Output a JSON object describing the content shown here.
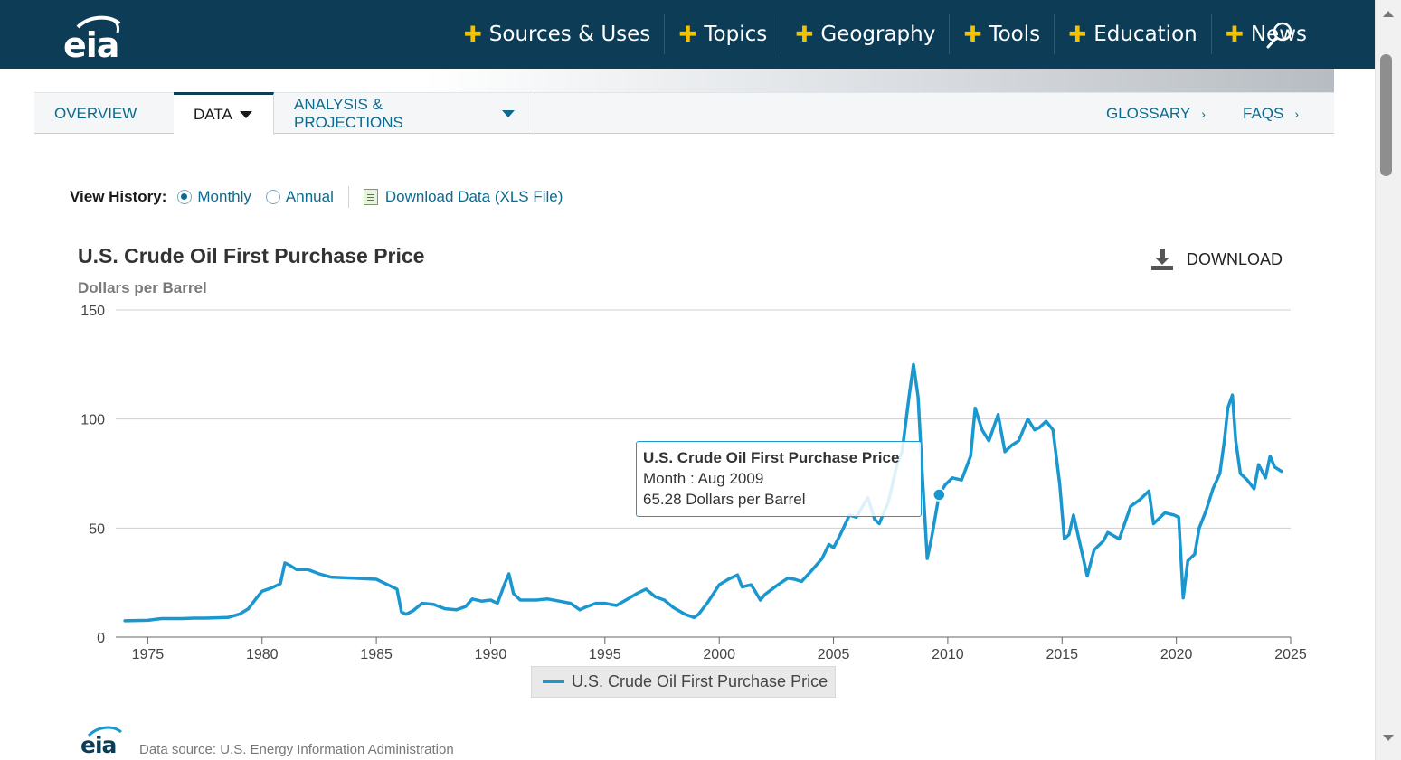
{
  "header": {
    "logo_text": "eia",
    "nav_items": [
      {
        "label": "Sources & Uses"
      },
      {
        "label": "Topics"
      },
      {
        "label": "Geography"
      },
      {
        "label": "Tools"
      },
      {
        "label": "Education"
      },
      {
        "label": "News"
      }
    ],
    "search_icon": "search-icon",
    "brand_color": "#0c3c56",
    "accent_color": "#f2c200"
  },
  "subnav": {
    "tabs": [
      {
        "label": "OVERVIEW",
        "active": false
      },
      {
        "label": "DATA",
        "active": true
      },
      {
        "label": "ANALYSIS & PROJECTIONS",
        "active": false
      }
    ],
    "right_links": [
      {
        "label": "GLOSSARY"
      },
      {
        "label": "FAQS"
      }
    ]
  },
  "view_history": {
    "label": "View History:",
    "options": [
      {
        "label": "Monthly",
        "selected": true
      },
      {
        "label": "Annual",
        "selected": false
      }
    ],
    "download_xls": "Download Data (XLS File)"
  },
  "chart_header": {
    "title": "U.S. Crude Oil First Purchase Price",
    "subtitle": "Dollars per Barrel",
    "download_label": "DOWNLOAD"
  },
  "tooltip": {
    "title": "U.S. Crude Oil First Purchase Price",
    "line1": "Month : Aug 2009",
    "line2": "65.28 Dollars per Barrel"
  },
  "legend": {
    "label": "U.S. Crude Oil First Purchase Price"
  },
  "footer": {
    "logo_text": "eia",
    "source": "Data source: U.S. Energy Information Administration"
  },
  "chart_data": {
    "type": "line",
    "title": "U.S. Crude Oil First Purchase Price",
    "ylabel": "Dollars per Barrel",
    "xlabel": "",
    "xlim": [
      1973.6,
      2025.0
    ],
    "ylim": [
      0,
      150
    ],
    "yticks": [
      0,
      50,
      100,
      150
    ],
    "xticks": [
      1975,
      1980,
      1985,
      1990,
      1995,
      2000,
      2005,
      2010,
      2015,
      2020,
      2025
    ],
    "grid": true,
    "legend_position": "bottom-center",
    "series_color": "#1a97cf",
    "highlight": {
      "x": 2009.62,
      "y": 65.28
    },
    "series": [
      {
        "name": "U.S. Crude Oil First Purchase Price",
        "x": [
          1974.0,
          1975.0,
          1975.6,
          1976.5,
          1977.0,
          1977.5,
          1978.5,
          1979.0,
          1979.4,
          1979.8,
          1980.0,
          1980.4,
          1980.8,
          1981.0,
          1981.2,
          1981.5,
          1982.0,
          1982.5,
          1983.0,
          1984.0,
          1985.0,
          1985.5,
          1985.9,
          1986.1,
          1986.3,
          1986.6,
          1987.0,
          1987.5,
          1988.0,
          1988.5,
          1988.9,
          1989.2,
          1989.6,
          1990.0,
          1990.3,
          1990.6,
          1990.8,
          1991.0,
          1991.3,
          1992.0,
          1992.5,
          1993.0,
          1993.5,
          1993.9,
          1994.1,
          1994.6,
          1995.0,
          1995.5,
          1996.0,
          1996.4,
          1996.8,
          1997.2,
          1997.6,
          1998.0,
          1998.5,
          1998.9,
          1999.1,
          1999.5,
          2000.0,
          2000.4,
          2000.8,
          2001.0,
          2001.4,
          2001.8,
          2002.0,
          2002.5,
          2003.0,
          2003.3,
          2003.6,
          2004.0,
          2004.5,
          2004.8,
          2005.0,
          2005.3,
          2005.7,
          2006.0,
          2006.5,
          2006.8,
          2007.0,
          2007.4,
          2007.8,
          2008.0,
          2008.3,
          2008.5,
          2008.7,
          2008.9,
          2009.1,
          2009.3,
          2009.62,
          2009.9,
          2010.2,
          2010.6,
          2011.0,
          2011.2,
          2011.5,
          2011.8,
          2012.2,
          2012.5,
          2012.8,
          2013.1,
          2013.5,
          2013.8,
          2014.0,
          2014.3,
          2014.6,
          2014.9,
          2015.1,
          2015.3,
          2015.5,
          2015.8,
          2016.1,
          2016.4,
          2016.8,
          2017.0,
          2017.5,
          2018.0,
          2018.4,
          2018.8,
          2019.0,
          2019.5,
          2019.9,
          2020.1,
          2020.3,
          2020.5,
          2020.8,
          2021.0,
          2021.3,
          2021.6,
          2021.9,
          2022.1,
          2022.25,
          2022.45,
          2022.6,
          2022.8,
          2023.1,
          2023.4,
          2023.6,
          2023.9,
          2024.1,
          2024.3,
          2024.6
        ],
        "values": [
          7.5,
          7.7,
          8.5,
          8.5,
          8.7,
          8.7,
          9.0,
          10.5,
          13.0,
          18.5,
          21.0,
          22.5,
          24.5,
          34.0,
          33.0,
          31.0,
          31.0,
          29.0,
          27.5,
          27.0,
          26.5,
          24.0,
          22.0,
          11.5,
          10.5,
          12.0,
          15.5,
          15.0,
          13.0,
          12.5,
          14.0,
          17.5,
          16.5,
          17.0,
          15.5,
          24.0,
          29.0,
          20.0,
          17.0,
          17.0,
          17.5,
          16.5,
          15.5,
          12.5,
          13.5,
          15.5,
          15.5,
          14.5,
          17.5,
          20.0,
          22.0,
          18.5,
          17.0,
          13.5,
          10.5,
          9.0,
          10.5,
          16.0,
          24.0,
          26.5,
          28.5,
          23.0,
          24.0,
          17.0,
          19.5,
          23.5,
          27.0,
          26.5,
          25.5,
          30.0,
          36.0,
          42.5,
          41.0,
          47.0,
          56.0,
          55.0,
          64.0,
          54.0,
          52.0,
          62.0,
          80.0,
          85.0,
          110.0,
          125.0,
          110.0,
          72.0,
          36.0,
          46.0,
          65.28,
          70.0,
          73.0,
          72.0,
          83.0,
          105.0,
          95.0,
          90.0,
          102.0,
          85.0,
          88.0,
          90.0,
          100.0,
          95.0,
          96.0,
          99.0,
          95.0,
          70.0,
          45.0,
          47.0,
          56.0,
          42.0,
          28.0,
          40.0,
          44.0,
          48.0,
          45.0,
          60.0,
          63.0,
          67.0,
          52.0,
          57.0,
          56.0,
          55.0,
          18.0,
          35.0,
          38.0,
          50.0,
          58.0,
          68.0,
          75.0,
          90.0,
          105.0,
          111.0,
          90.0,
          75.0,
          72.0,
          68.0,
          79.0,
          73.0,
          83.0,
          78.0,
          76.0
        ]
      }
    ]
  }
}
